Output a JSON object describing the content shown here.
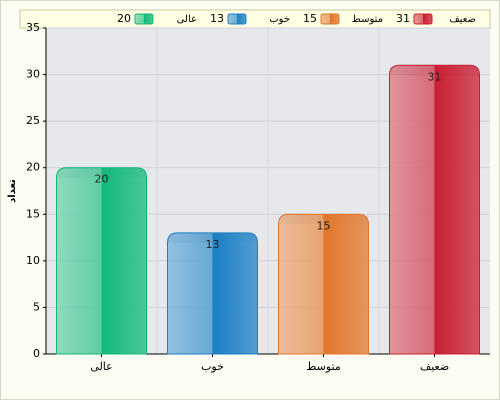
{
  "chart_data": {
    "type": "bar",
    "y_label": "تعداد",
    "categories": [
      "عالی",
      "خوب",
      "متوسط",
      "ضعیف"
    ],
    "values": [
      20,
      13,
      15,
      31
    ],
    "colors": [
      "#10b878",
      "#1a7fc4",
      "#e0762a",
      "#c81e32"
    ],
    "ylim": [
      0,
      35
    ],
    "yticks": [
      0,
      5,
      10,
      15,
      20,
      25,
      30,
      35
    ],
    "grid": true,
    "legend": "top"
  }
}
